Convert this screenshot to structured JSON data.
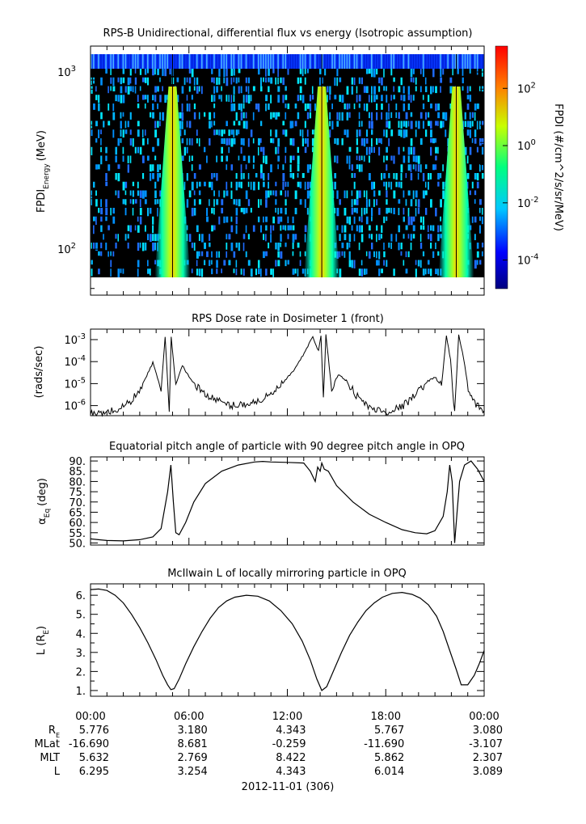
{
  "chart_data": [
    {
      "type": "heatmap",
      "title": "RPS-B  Unidirectional, differential flux vs energy (Isotropic assumption)",
      "ylabel_main": "FPDI",
      "ylabel_sub": "Energy",
      "ylabel_unit": "(MeV)",
      "yscale": "log",
      "ylim": [
        55,
        1400
      ],
      "yticks": [
        {
          "value": 100,
          "base": "10",
          "exp": "2"
        },
        {
          "value": 1000,
          "base": "10",
          "exp": "3"
        }
      ],
      "xlim_hours": [
        0,
        24
      ],
      "colorbar": {
        "label": "FPDI (#/cm^2/s/sr/MeV)",
        "scale": "log",
        "range": [
          1e-05,
          3000
        ],
        "ticks": [
          {
            "value": 100,
            "base": "10",
            "exp": "2"
          },
          {
            "value": 1,
            "base": "10",
            "exp": "0"
          },
          {
            "value": 0.01,
            "base": "10",
            "exp": "-2"
          },
          {
            "value": 0.0001,
            "base": "10",
            "exp": "-4"
          }
        ]
      },
      "flux_peaks_hours": [
        5.0,
        14.1,
        22.3
      ]
    },
    {
      "type": "line",
      "title": "RPS  Dose rate in Dosimeter 1 (front)",
      "ylabel": "(rads/sec)",
      "yscale": "log",
      "ylim": [
        3.5e-07,
        0.003
      ],
      "yticks": [
        {
          "value": 0.001,
          "base": "10",
          "exp": "-3"
        },
        {
          "value": 0.0001,
          "base": "10",
          "exp": "-4"
        },
        {
          "value": 1e-05,
          "base": "10",
          "exp": "-5"
        },
        {
          "value": 1e-06,
          "base": "10",
          "exp": "-6"
        }
      ],
      "x": [
        0.0,
        1.0,
        1.8,
        2.6,
        3.2,
        3.8,
        4.3,
        4.55,
        4.8,
        4.92,
        5.05,
        5.2,
        5.6,
        6.0,
        6.7,
        7.5,
        8.5,
        9.5,
        10.2,
        11.0,
        11.8,
        12.5,
        13.1,
        13.55,
        13.9,
        14.05,
        14.2,
        14.35,
        14.7,
        15.1,
        15.6,
        16.2,
        17.0,
        18.0,
        19.0,
        19.8,
        20.5,
        21.0,
        21.4,
        21.7,
        21.95,
        22.2,
        22.45,
        22.75,
        23.1,
        23.5,
        24.0
      ],
      "values": [
        4e-07,
        5e-07,
        7e-07,
        2e-06,
        1e-05,
        9e-05,
        5e-06,
        0.0014,
        5e-07,
        0.0013,
        0.00011,
        8e-06,
        7e-05,
        2e-05,
        5e-06,
        2e-06,
        1e-06,
        1.2e-06,
        1.6e-06,
        3e-06,
        1.2e-05,
        5e-05,
        0.0003,
        0.0014,
        0.0003,
        0.0015,
        2e-06,
        0.0016,
        6e-06,
        2.5e-05,
        1.4e-05,
        3e-06,
        8e-07,
        5e-07,
        9e-07,
        3e-06,
        1.2e-05,
        2e-05,
        8e-06,
        0.0015,
        0.00012,
        4e-07,
        0.0016,
        0.00014,
        3e-06,
        1e-06,
        6e-07
      ]
    },
    {
      "type": "line",
      "title": "Equatorial pitch angle of particle with 90 degree pitch angle in OPQ",
      "ylabel_main": "α",
      "ylabel_sub": "Eq",
      "ylabel_unit": "(deg)",
      "ylim": [
        49,
        92
      ],
      "yticks": [
        "90.",
        "85.",
        "80.",
        "75.",
        "70.",
        "65.",
        "60.",
        "55.",
        "50."
      ],
      "x": [
        0.0,
        1.0,
        2.0,
        3.0,
        3.8,
        4.3,
        4.7,
        4.9,
        5.05,
        5.2,
        5.4,
        5.8,
        6.3,
        7.0,
        8.0,
        9.0,
        10.0,
        10.5,
        11.0,
        12.0,
        13.0,
        13.4,
        13.7,
        13.85,
        14.0,
        14.1,
        14.25,
        14.5,
        15.0,
        16.0,
        17.0,
        18.0,
        19.0,
        19.8,
        20.5,
        21.0,
        21.5,
        21.75,
        21.9,
        22.05,
        22.2,
        22.35,
        22.5,
        22.8,
        23.2,
        23.6,
        24.0
      ],
      "values": [
        52.0,
        51.2,
        51.0,
        51.6,
        53.0,
        57.0,
        75.0,
        88.0,
        70.0,
        55.0,
        54.0,
        60.0,
        70.0,
        79.0,
        85.0,
        88.0,
        89.5,
        89.8,
        89.5,
        89.3,
        89.0,
        85.0,
        80.0,
        87.0,
        85.0,
        89.0,
        86.0,
        85.0,
        78.0,
        70.0,
        64.0,
        60.0,
        56.5,
        55.0,
        54.5,
        56.0,
        63.0,
        75.0,
        88.0,
        80.0,
        50.0,
        65.0,
        80.0,
        88.0,
        90.0,
        86.0,
        80.0
      ]
    },
    {
      "type": "line",
      "title": "McIlwain L of locally mirroring particle in OPQ",
      "ylabel_main": "L (R",
      "ylabel_sub": "E",
      "ylabel_unit": ")",
      "ylim": [
        0.7,
        6.6
      ],
      "yticks": [
        "6.",
        "5.",
        "4.",
        "3.",
        "2.",
        "1."
      ],
      "x": [
        0.0,
        0.5,
        1.0,
        1.5,
        2.0,
        2.5,
        3.0,
        3.5,
        4.0,
        4.4,
        4.7,
        4.9,
        5.1,
        5.4,
        5.8,
        6.3,
        6.8,
        7.3,
        7.8,
        8.3,
        8.8,
        9.5,
        10.2,
        10.9,
        11.6,
        12.3,
        12.9,
        13.4,
        13.8,
        14.1,
        14.4,
        14.8,
        15.3,
        15.8,
        16.3,
        16.8,
        17.3,
        17.8,
        18.4,
        19.0,
        19.6,
        20.1,
        20.6,
        21.1,
        21.5,
        21.9,
        22.3,
        22.6,
        23.0,
        23.4,
        23.7,
        24.0
      ],
      "values": [
        6.3,
        6.33,
        6.25,
        6.0,
        5.6,
        5.0,
        4.3,
        3.5,
        2.6,
        1.8,
        1.3,
        1.05,
        1.1,
        1.6,
        2.4,
        3.3,
        4.1,
        4.8,
        5.35,
        5.7,
        5.9,
        6.0,
        5.95,
        5.7,
        5.2,
        4.5,
        3.6,
        2.6,
        1.6,
        1.0,
        1.2,
        2.0,
        3.0,
        3.9,
        4.6,
        5.2,
        5.6,
        5.9,
        6.1,
        6.15,
        6.05,
        5.85,
        5.5,
        4.9,
        4.1,
        3.1,
        2.1,
        1.3,
        1.3,
        1.8,
        2.4,
        3.1
      ]
    }
  ],
  "x_axis": {
    "tick_labels": [
      "00:00",
      "06:00",
      "12:00",
      "18:00",
      "00:00"
    ],
    "date_label": "2012-11-01 (306)"
  },
  "ephemeris": [
    {
      "label": "R",
      "sub": "E",
      "values": [
        "5.776",
        "3.180",
        "4.343",
        "5.767",
        "3.080"
      ]
    },
    {
      "label": "MLat",
      "sub": "",
      "values": [
        "-16.690",
        "8.681",
        "-0.259",
        "-11.690",
        "-3.107"
      ]
    },
    {
      "label": "MLT",
      "sub": "",
      "values": [
        "5.632",
        "2.769",
        "8.422",
        "5.862",
        "2.307"
      ]
    },
    {
      "label": "L",
      "sub": "",
      "values": [
        "6.295",
        "3.254",
        "4.343",
        "6.014",
        "3.089"
      ]
    }
  ]
}
